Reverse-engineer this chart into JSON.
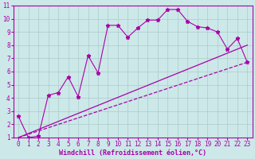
{
  "background_color": "#cce8e8",
  "grid_color": "#aacccc",
  "line_color": "#aa00aa",
  "xlabel": "Windchill (Refroidissement éolien,°C)",
  "xlim": [
    -0.5,
    23.5
  ],
  "ylim": [
    1,
    11
  ],
  "xticks": [
    0,
    1,
    2,
    3,
    4,
    5,
    6,
    7,
    8,
    9,
    10,
    11,
    12,
    13,
    14,
    15,
    16,
    17,
    18,
    19,
    20,
    21,
    22,
    23
  ],
  "yticks": [
    1,
    2,
    3,
    4,
    5,
    6,
    7,
    8,
    9,
    10,
    11
  ],
  "line1_x": [
    0,
    1,
    2,
    3,
    4,
    5,
    6,
    7,
    8,
    9,
    10,
    11,
    12,
    13,
    14,
    15,
    16,
    17,
    18,
    19,
    20,
    21,
    22,
    23
  ],
  "line1_y": [
    2.6,
    1.0,
    1.1,
    4.2,
    4.4,
    5.6,
    4.1,
    7.2,
    5.9,
    9.5,
    9.5,
    8.6,
    9.3,
    9.9,
    9.9,
    10.7,
    10.7,
    9.8,
    9.4,
    9.3,
    9.0,
    7.7,
    8.5,
    6.7
  ],
  "line2_x": [
    0,
    23
  ],
  "line2_y": [
    1.0,
    8.0
  ],
  "line3_x": [
    0,
    23
  ],
  "line3_y": [
    1.0,
    6.7
  ],
  "tick_fontsize": 5.5,
  "xlabel_fontsize": 6.0
}
